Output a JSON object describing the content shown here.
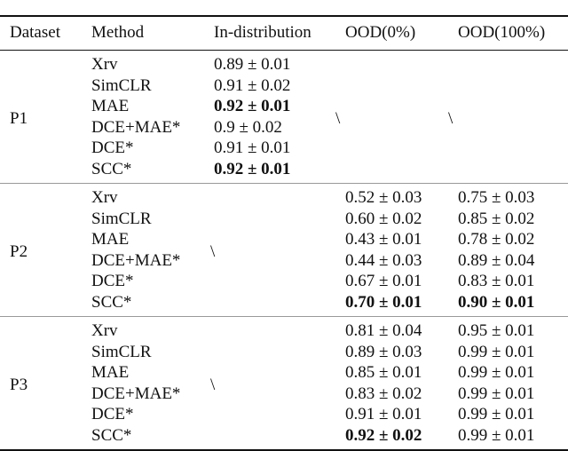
{
  "table": {
    "headers": [
      "Dataset",
      "Method",
      "In-distribution",
      "OOD(0%)",
      "OOD(100%)"
    ],
    "groups": [
      {
        "dataset": "P1",
        "merged": {
          "ood0": "\\",
          "ood100": "\\"
        },
        "rows": [
          {
            "method": "Xrv",
            "in_dist": {
              "text": "0.89 ± 0.01",
              "bold": false
            }
          },
          {
            "method": "SimCLR",
            "in_dist": {
              "text": "0.91 ± 0.02",
              "bold": false
            }
          },
          {
            "method": "MAE",
            "in_dist": {
              "text": "0.92 ± 0.01",
              "bold": true
            }
          },
          {
            "method": "DCE+MAE*",
            "in_dist": {
              "text": "0.9 ± 0.02",
              "bold": false
            }
          },
          {
            "method": "DCE*",
            "in_dist": {
              "text": "0.91 ± 0.01",
              "bold": false
            }
          },
          {
            "method": "SCC*",
            "in_dist": {
              "text": "0.92 ± 0.01",
              "bold": true
            }
          }
        ]
      },
      {
        "dataset": "P2",
        "merged": {
          "in_dist": "\\"
        },
        "rows": [
          {
            "method": "Xrv",
            "ood0": {
              "text": "0.52 ± 0.03",
              "bold": false
            },
            "ood100": {
              "text": "0.75 ± 0.03",
              "bold": false
            }
          },
          {
            "method": "SimCLR",
            "ood0": {
              "text": "0.60 ± 0.02",
              "bold": false
            },
            "ood100": {
              "text": "0.85 ± 0.02",
              "bold": false
            }
          },
          {
            "method": "MAE",
            "ood0": {
              "text": "0.43 ± 0.01",
              "bold": false
            },
            "ood100": {
              "text": "0.78 ± 0.02",
              "bold": false
            }
          },
          {
            "method": "DCE+MAE*",
            "ood0": {
              "text": "0.44 ± 0.03",
              "bold": false
            },
            "ood100": {
              "text": "0.89 ± 0.04",
              "bold": false
            }
          },
          {
            "method": "DCE*",
            "ood0": {
              "text": "0.67 ± 0.01",
              "bold": false
            },
            "ood100": {
              "text": "0.83 ± 0.01",
              "bold": false
            }
          },
          {
            "method": "SCC*",
            "ood0": {
              "text": "0.70 ± 0.01",
              "bold": true
            },
            "ood100": {
              "text": "0.90 ± 0.01",
              "bold": true
            }
          }
        ]
      },
      {
        "dataset": "P3",
        "merged": {
          "in_dist": "\\"
        },
        "rows": [
          {
            "method": "Xrv",
            "ood0": {
              "text": "0.81 ± 0.04",
              "bold": false
            },
            "ood100": {
              "text": "0.95 ± 0.01",
              "bold": false
            }
          },
          {
            "method": "SimCLR",
            "ood0": {
              "text": "0.89 ± 0.03",
              "bold": false
            },
            "ood100": {
              "text": "0.99 ± 0.01",
              "bold": false
            }
          },
          {
            "method": "MAE",
            "ood0": {
              "text": "0.85 ± 0.01",
              "bold": false
            },
            "ood100": {
              "text": "0.99 ± 0.01",
              "bold": false
            }
          },
          {
            "method": "DCE+MAE*",
            "ood0": {
              "text": "0.83 ± 0.02",
              "bold": false
            },
            "ood100": {
              "text": "0.99 ± 0.01",
              "bold": false
            }
          },
          {
            "method": "DCE*",
            "ood0": {
              "text": "0.91 ± 0.01",
              "bold": false
            },
            "ood100": {
              "text": "0.99 ± 0.01",
              "bold": false
            }
          },
          {
            "method": "SCC*",
            "ood0": {
              "text": "0.92 ± 0.02",
              "bold": true
            },
            "ood100": {
              "text": "0.99 ± 0.01",
              "bold": false
            }
          }
        ]
      }
    ]
  }
}
